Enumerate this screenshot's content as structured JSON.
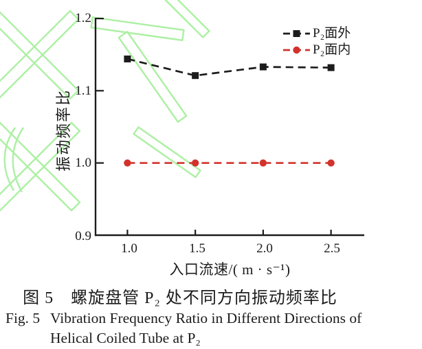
{
  "watermark": {
    "color": "#a6ef9c"
  },
  "chart_data": {
    "type": "line",
    "x": [
      1.0,
      1.5,
      2.0,
      2.5
    ],
    "series": [
      {
        "name": "P₂面外",
        "values": [
          1.144,
          1.121,
          1.133,
          1.132
        ],
        "color": "#1c1c1c",
        "marker": "square",
        "linestyle": "dashed"
      },
      {
        "name": "P₂面内",
        "values": [
          1.0,
          1.0,
          1.0,
          1.0
        ],
        "color": "#d3322c",
        "marker": "circle",
        "linestyle": "dashed"
      }
    ],
    "title": "",
    "xlabel": "入口流速/( m · s⁻¹)",
    "ylabel": "振动频率比",
    "xticks": [
      1.0,
      1.5,
      2.0,
      2.5
    ],
    "xtick_labels": [
      "1.0",
      "1.5",
      "2.0",
      "2.5"
    ],
    "yticks": [
      0.9,
      1.0,
      1.1,
      1.2
    ],
    "ytick_labels": [
      "0.9",
      "1.0",
      "1.1",
      "1.2"
    ],
    "xlim": [
      0.765,
      2.745
    ],
    "ylim": [
      0.9,
      1.2
    ],
    "grid": false,
    "legend_position": "top-right"
  },
  "caption": {
    "cn": "图 5　螺旋盘管 P₂ 处不同方向振动频率比",
    "fig_en": "Fig. 5",
    "en_line1": "Vibration Frequency Ratio in Different Directions of",
    "en_line2": "Helical Coiled Tube at P₂"
  }
}
